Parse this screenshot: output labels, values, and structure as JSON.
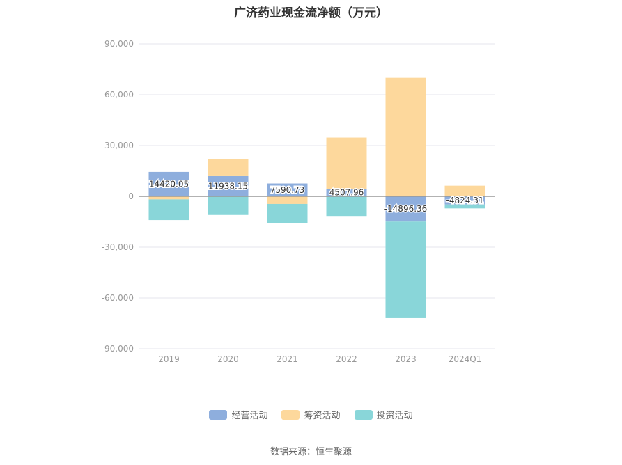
{
  "title": "广济药业现金流净额（万元）",
  "source": "数据来源：恒生聚源",
  "chart_data": {
    "type": "bar",
    "stacked": true,
    "categories": [
      "2019",
      "2020",
      "2021",
      "2022",
      "2023",
      "2024Q1"
    ],
    "ylim": [
      -90000,
      90000
    ],
    "yticks": [
      -90000,
      -60000,
      -30000,
      0,
      30000,
      60000,
      90000
    ],
    "ytick_labels": [
      "-90,000",
      "-60,000",
      "-30,000",
      "0",
      "30,000",
      "60,000",
      "90,000"
    ],
    "grid": true,
    "legend_position": "bottom",
    "series": [
      {
        "name": "经营活动",
        "color": "#8eaedd",
        "values": [
          14420.05,
          11938.15,
          7590.73,
          4507.96,
          -14896.36,
          -4824.31
        ],
        "labels": [
          "14420.05",
          "11938.15",
          "7590.73",
          "4507.96",
          "-14896.36",
          "-4824.31"
        ]
      },
      {
        "name": "筹资活动",
        "color": "#fdd89c",
        "values": [
          -1800,
          10200,
          -4500,
          30200,
          70000,
          6300
        ]
      },
      {
        "name": "投资活动",
        "color": "#89d6d9",
        "values": [
          -12200,
          -11000,
          -11500,
          -12000,
          -57000,
          -2300
        ]
      }
    ]
  }
}
